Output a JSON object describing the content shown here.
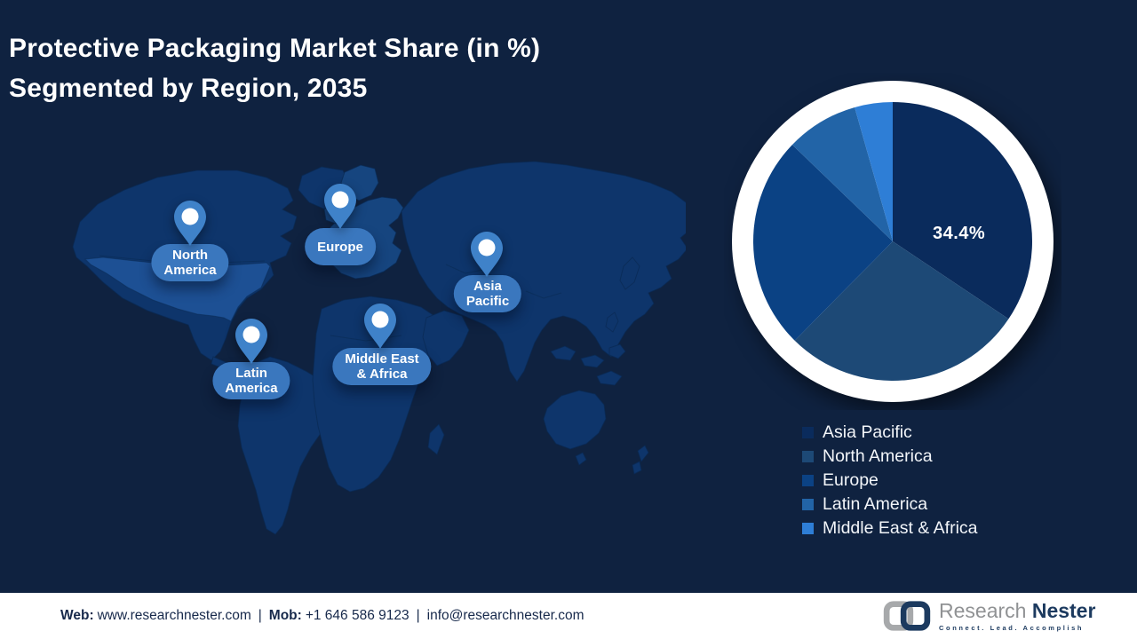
{
  "title": "Protective Packaging Market Share (in %)\nSegmented by Region, 2035",
  "map": {
    "pins": [
      {
        "id": "north-america",
        "label": "North\nAmerica"
      },
      {
        "id": "europe",
        "label": "Europe"
      },
      {
        "id": "asia-pacific",
        "label": "Asia\nPacific"
      },
      {
        "id": "latin-america",
        "label": "Latin\nAmerica"
      },
      {
        "id": "middle-east-africa",
        "label": "Middle East\n& Africa"
      }
    ]
  },
  "chart_data": {
    "type": "pie",
    "title": "Protective Packaging Market Share (in %) Segmented by Region, 2035",
    "units": "percent",
    "direction": "clockwise",
    "start_angle_deg": 0,
    "series": [
      {
        "name": "Asia Pacific",
        "value": 34.4,
        "color": "#0a2b5c"
      },
      {
        "name": "North America",
        "value": 28.0,
        "color": "#1d4976"
      },
      {
        "name": "Europe",
        "value": 24.8,
        "color": "#0b4284"
      },
      {
        "name": "Latin America",
        "value": 8.4,
        "color": "#2264a7"
      },
      {
        "name": "Middle East & Africa",
        "value": 4.4,
        "color": "#2e7ed6"
      }
    ],
    "data_label": {
      "text": "34.4%",
      "series": "Asia Pacific"
    },
    "legend_position": "bottom-right",
    "note": "Only the Asia Pacific slice is labeled (34.4%); other values estimated from slice angles."
  },
  "footer": {
    "web_label": "Web:",
    "web_value": "www.researchnester.com",
    "separator1": "|",
    "mob_label": "Mob:",
    "mob_value": "+1 646 586 9123",
    "separator2": "|",
    "email": "info@researchnester.com",
    "logo": {
      "brand_primary": "Research",
      "brand_secondary": "Nester",
      "tagline": "Connect. Lead. Accomplish"
    }
  },
  "colors": {
    "background": "#0f2240",
    "map_land": "#0e356b",
    "map_land_highlight": "#1d5094",
    "map_land_europe": "#16457f",
    "pin": "#3f82c9",
    "pin_label_pill": "#3a77be",
    "pie_ring": "#ffffff",
    "title_text": "#ffffff",
    "legend_text": "#f2f5f9",
    "footer_background": "#ffffff",
    "footer_text": "#17294b",
    "brand_gray": "#909294",
    "brand_navy": "#1c3a5f"
  }
}
